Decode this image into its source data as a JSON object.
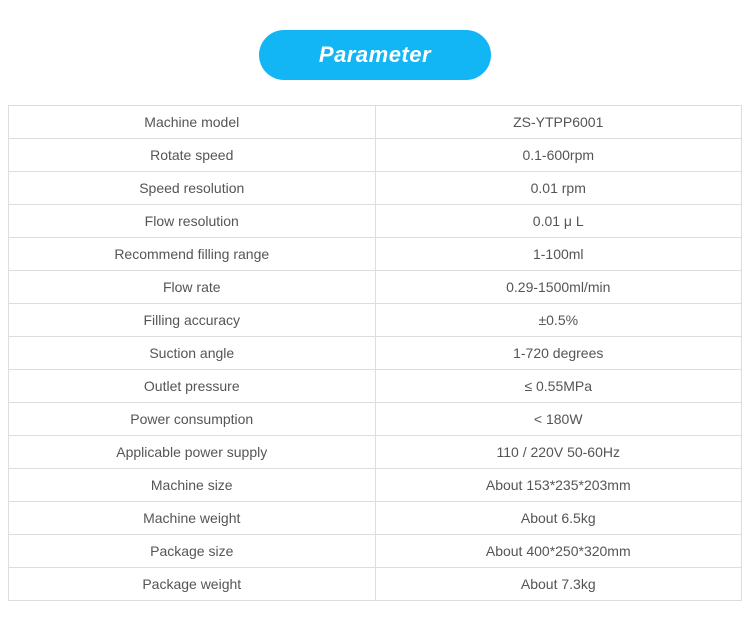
{
  "header": {
    "label": "Parameter",
    "bg_color": "#12b6f5",
    "text_color": "#ffffff"
  },
  "table": {
    "border_color": "#dddddd",
    "rows": [
      {
        "label": "Machine model",
        "value": "ZS-YTPP6001"
      },
      {
        "label": "Rotate speed",
        "value": "0.1-600rpm"
      },
      {
        "label": "Speed resolution",
        "value": "0.01 rpm"
      },
      {
        "label": "Flow resolution",
        "value": "0.01 μ L"
      },
      {
        "label": "Recommend filling range",
        "value": "1-100ml"
      },
      {
        "label": "Flow rate",
        "value": "0.29-1500ml/min"
      },
      {
        "label": "Filling accuracy",
        "value": "±0.5%"
      },
      {
        "label": "Suction angle",
        "value": "1-720 degrees"
      },
      {
        "label": "Outlet pressure",
        "value": "≤ 0.55MPa"
      },
      {
        "label": "Power consumption",
        "value": "< 180W"
      },
      {
        "label": "Applicable power supply",
        "value": "110 / 220V 50-60Hz"
      },
      {
        "label": "Machine size",
        "value": "About 153*235*203mm"
      },
      {
        "label": "Machine weight",
        "value": "About 6.5kg"
      },
      {
        "label": "Package size",
        "value": "About 400*250*320mm"
      },
      {
        "label": "Package weight",
        "value": "About 7.3kg"
      }
    ]
  }
}
